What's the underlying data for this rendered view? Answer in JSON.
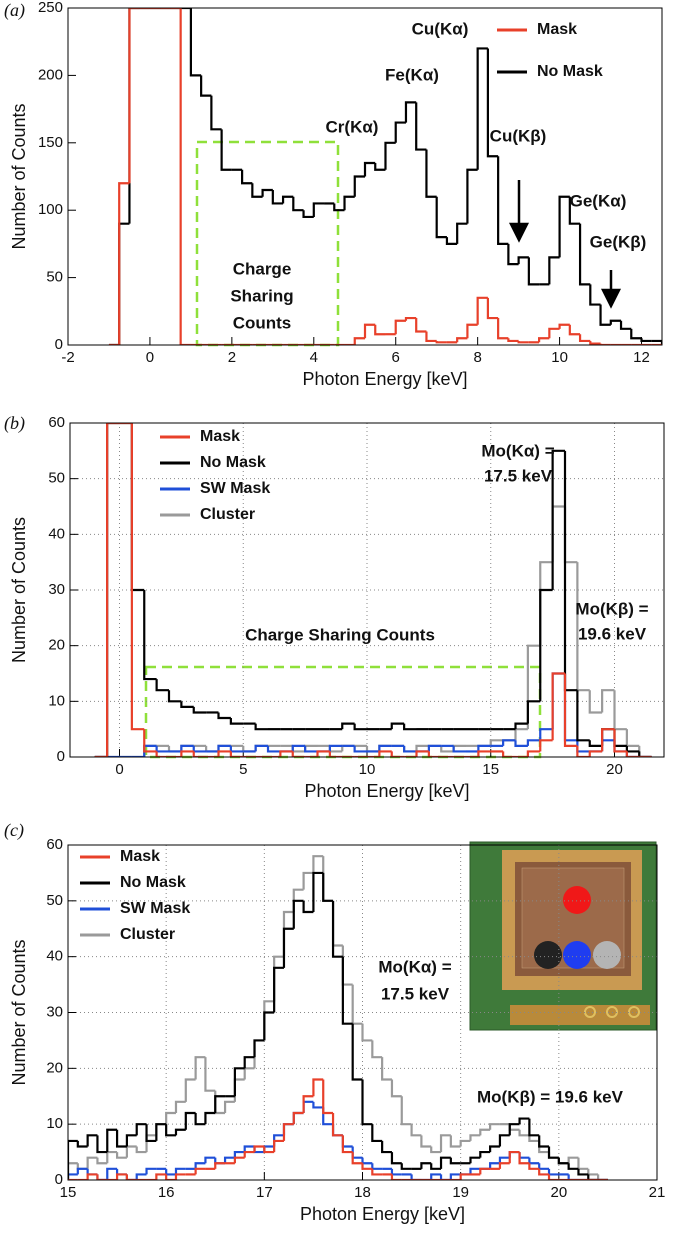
{
  "chart_data": [
    {
      "type": "histogram",
      "panel_label": "(a)",
      "x_label": "Photon Energy [keV]",
      "y_label": "Number of Counts",
      "xlim": [
        -2,
        12.5
      ],
      "xticks": [
        -2,
        0,
        2,
        4,
        6,
        8,
        10,
        12
      ],
      "ylim": [
        0,
        250
      ],
      "yticks": [
        0,
        50,
        100,
        150,
        200,
        250
      ],
      "grid": false,
      "legend": "upper right",
      "bins": [
        -1,
        -0.75,
        -0.5,
        -0.25,
        0,
        0.25,
        0.5,
        0.75,
        1,
        1.25,
        1.5,
        1.75,
        2,
        2.25,
        2.5,
        2.75,
        3,
        3.25,
        3.5,
        3.75,
        4,
        4.25,
        4.5,
        4.75,
        5,
        5.25,
        5.5,
        5.75,
        6,
        6.25,
        6.5,
        6.75,
        7,
        7.25,
        7.5,
        7.75,
        8,
        8.25,
        8.5,
        8.75,
        9,
        9.25,
        9.5,
        9.75,
        10,
        10.25,
        10.5,
        10.75,
        11,
        11.25,
        11.5,
        11.75,
        12,
        12.25,
        12.5
      ],
      "series": [
        {
          "name": "Mask",
          "color": "#e8402a",
          "values": [
            0,
            120,
            250,
            250,
            250,
            250,
            250,
            0,
            0,
            0,
            0,
            0,
            0,
            0,
            0,
            0,
            0,
            0,
            0,
            0,
            0,
            0,
            0,
            0,
            5,
            15,
            8,
            8,
            18,
            20,
            10,
            3,
            2,
            2,
            5,
            15,
            35,
            20,
            5,
            3,
            2,
            2,
            5,
            12,
            15,
            8,
            3,
            1,
            0,
            0,
            0,
            0,
            0,
            0
          ]
        },
        {
          "name": "No Mask",
          "color": "#000000",
          "values": [
            0,
            90,
            250,
            250,
            250,
            250,
            250,
            250,
            200,
            185,
            160,
            130,
            130,
            120,
            110,
            115,
            105,
            110,
            100,
            95,
            105,
            105,
            100,
            110,
            125,
            135,
            130,
            150,
            165,
            180,
            145,
            110,
            80,
            75,
            90,
            130,
            220,
            140,
            75,
            60,
            65,
            45,
            45,
            65,
            110,
            90,
            45,
            30,
            15,
            18,
            12,
            5,
            3,
            3
          ]
        }
      ],
      "annotations": [
        "Cu(Kα)",
        "Fe(Kα)",
        "Cr(Kα)",
        "Cu(Kβ)",
        "Ge(Kα)",
        "Ge(Kβ)",
        "Charge",
        "Sharing",
        "Counts"
      ]
    },
    {
      "type": "histogram",
      "panel_label": "(b)",
      "x_label": "Photon Energy [keV]",
      "y_label": "Number of Counts",
      "xlim": [
        -2,
        22
      ],
      "xticks": [
        0,
        5,
        10,
        15,
        20
      ],
      "ylim": [
        0,
        60
      ],
      "yticks": [
        0,
        10,
        20,
        30,
        40,
        50,
        60
      ],
      "grid": true,
      "legend": "upper left",
      "bins": [
        -1,
        -0.5,
        0,
        0.5,
        1,
        1.5,
        2,
        2.5,
        3,
        3.5,
        4,
        4.5,
        5,
        5.5,
        6,
        6.5,
        7,
        7.5,
        8,
        8.5,
        9,
        9.5,
        10,
        10.5,
        11,
        11.5,
        12,
        12.5,
        13,
        13.5,
        14,
        14.5,
        15,
        15.5,
        16,
        16.5,
        17,
        17.5,
        18,
        18.5,
        19,
        19.5,
        20,
        20.5,
        21,
        21.5
      ],
      "series": [
        {
          "name": "Mask",
          "color": "#e8402a",
          "values": [
            0,
            60,
            60,
            5,
            1,
            0,
            0,
            1,
            0,
            0,
            1,
            0,
            0,
            0,
            0,
            1,
            0,
            0,
            1,
            0,
            0,
            0,
            0,
            1,
            0,
            0,
            1,
            0,
            0,
            0,
            0,
            1,
            1,
            0,
            0,
            1,
            3,
            15,
            2,
            0,
            1,
            5,
            1,
            0,
            0
          ]
        },
        {
          "name": "No Mask",
          "color": "#000000",
          "values": [
            0,
            60,
            60,
            30,
            14,
            12,
            10,
            9,
            8,
            8,
            7,
            6,
            6,
            5,
            5,
            5,
            5,
            5,
            5,
            5,
            6,
            5,
            5,
            5,
            6,
            5,
            5,
            5,
            5,
            5,
            5,
            5,
            5,
            5,
            6,
            10,
            30,
            55,
            12,
            3,
            2,
            5,
            2,
            1,
            0
          ]
        },
        {
          "name": "SW Mask",
          "color": "#1f4fd8",
          "values": [
            0,
            0,
            0,
            0,
            2,
            1,
            1,
            2,
            1,
            1,
            2,
            1,
            1,
            2,
            1,
            1,
            2,
            1,
            1,
            2,
            2,
            1,
            1,
            2,
            2,
            1,
            1,
            2,
            2,
            1,
            1,
            2,
            2,
            3,
            2,
            3,
            5,
            15,
            3,
            1,
            1,
            3,
            1,
            0,
            0
          ]
        },
        {
          "name": "Cluster",
          "color": "#9a9a9a",
          "values": [
            0,
            0,
            0,
            0,
            2,
            2,
            1,
            2,
            2,
            1,
            2,
            2,
            1,
            2,
            2,
            2,
            1,
            2,
            2,
            1,
            2,
            2,
            1,
            2,
            2,
            1,
            2,
            2,
            1,
            2,
            2,
            2,
            3,
            3,
            5,
            20,
            35,
            45,
            35,
            12,
            8,
            12,
            5,
            2,
            0
          ]
        }
      ],
      "annotations": [
        "Mo(Kα) =",
        "17.5 keV",
        "Mo(Kβ) =",
        "19.6 keV",
        "Charge Sharing Counts"
      ]
    },
    {
      "type": "histogram",
      "panel_label": "(c)",
      "x_label": "Photon Energy [keV]",
      "y_label": "Number of Counts",
      "xlim": [
        15,
        21
      ],
      "xticks": [
        15,
        16,
        17,
        18,
        19,
        20,
        21
      ],
      "ylim": [
        0,
        60
      ],
      "yticks": [
        0,
        10,
        20,
        30,
        40,
        50,
        60
      ],
      "grid": true,
      "legend": "upper left",
      "bins": [
        15,
        15.1,
        15.2,
        15.3,
        15.4,
        15.5,
        15.6,
        15.7,
        15.8,
        15.9,
        16,
        16.1,
        16.2,
        16.3,
        16.4,
        16.5,
        16.6,
        16.7,
        16.8,
        16.9,
        17,
        17.1,
        17.2,
        17.3,
        17.4,
        17.5,
        17.6,
        17.7,
        17.8,
        17.9,
        18,
        18.1,
        18.2,
        18.3,
        18.4,
        18.5,
        18.6,
        18.7,
        18.8,
        18.9,
        19,
        19.1,
        19.2,
        19.3,
        19.4,
        19.5,
        19.6,
        19.7,
        19.8,
        19.9,
        20,
        20.1,
        20.2,
        20.3,
        20.4,
        20.5
      ],
      "series": [
        {
          "name": "Mask",
          "color": "#e8402a",
          "values": [
            0,
            0,
            1,
            0,
            0,
            1,
            0,
            0,
            0,
            1,
            0,
            1,
            1,
            2,
            2,
            3,
            3,
            4,
            5,
            6,
            5,
            7,
            10,
            12,
            15,
            18,
            12,
            8,
            5,
            3,
            2,
            1,
            1,
            0,
            0,
            0,
            0,
            0,
            0,
            0,
            1,
            1,
            2,
            2,
            3,
            5,
            3,
            2,
            1,
            0,
            0,
            0,
            0,
            0,
            0
          ]
        },
        {
          "name": "No Mask",
          "color": "#000000",
          "values": [
            7,
            6,
            8,
            5,
            9,
            6,
            8,
            10,
            7,
            10,
            8,
            9,
            12,
            10,
            12,
            15,
            15,
            20,
            22,
            25,
            30,
            38,
            45,
            50,
            48,
            55,
            50,
            40,
            28,
            18,
            10,
            7,
            5,
            3,
            2,
            2,
            3,
            2,
            4,
            3,
            3,
            4,
            5,
            6,
            8,
            10,
            11,
            8,
            6,
            4,
            3,
            2,
            1,
            0,
            0
          ]
        },
        {
          "name": "SW Mask",
          "color": "#1f4fd8",
          "values": [
            1,
            2,
            1,
            0,
            2,
            1,
            0,
            1,
            2,
            2,
            1,
            2,
            2,
            3,
            4,
            3,
            4,
            5,
            6,
            5,
            6,
            8,
            10,
            12,
            14,
            13,
            10,
            8,
            6,
            4,
            3,
            2,
            2,
            1,
            1,
            0,
            0,
            1,
            0,
            1,
            1,
            2,
            2,
            3,
            4,
            5,
            4,
            3,
            2,
            1,
            1,
            0,
            0,
            0,
            0
          ]
        },
        {
          "name": "Cluster",
          "color": "#9a9a9a",
          "values": [
            3,
            2,
            4,
            3,
            5,
            4,
            6,
            5,
            8,
            10,
            12,
            14,
            18,
            22,
            16,
            12,
            14,
            18,
            20,
            25,
            32,
            40,
            48,
            52,
            55,
            58,
            50,
            42,
            35,
            28,
            25,
            22,
            18,
            15,
            10,
            8,
            6,
            5,
            8,
            6,
            7,
            8,
            9,
            10,
            10,
            9,
            8,
            7,
            5,
            4,
            3,
            4,
            2,
            1,
            0
          ]
        }
      ],
      "annotations": [
        "Mo(Kα) =",
        "17.5 keV",
        "Mo(Kβ) = 19.6 keV"
      ]
    }
  ]
}
